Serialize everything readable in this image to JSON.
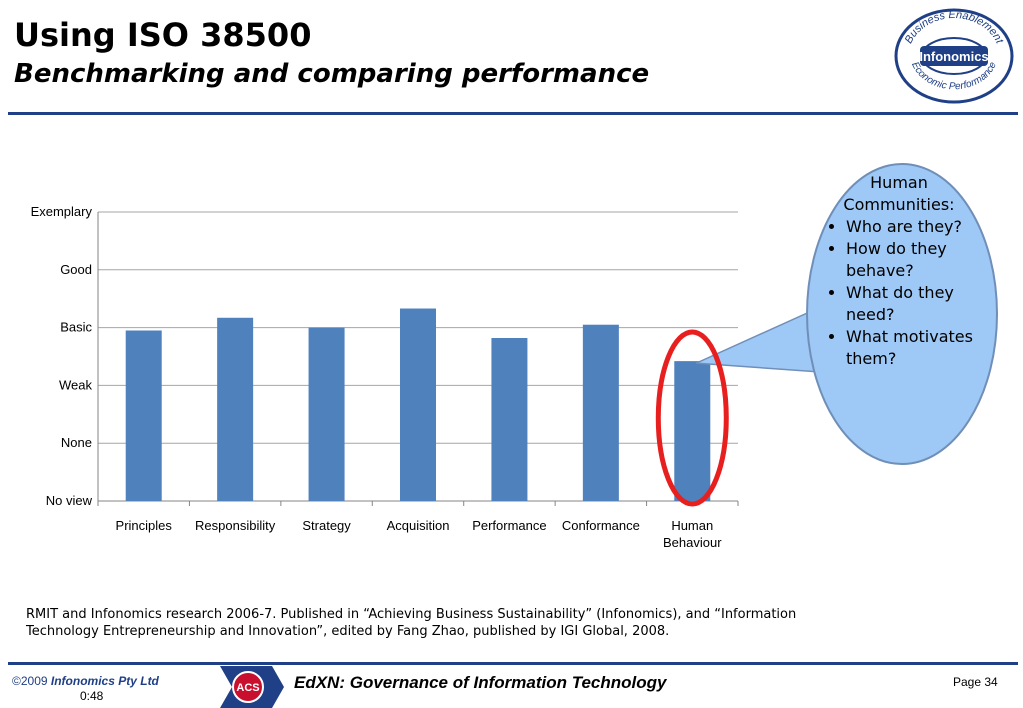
{
  "header": {
    "title": "Using ISO 38500",
    "subtitle": "Benchmarking and comparing performance"
  },
  "logo": {
    "ring_top": "Business Enablement",
    "center": "Infonomics",
    "ring_bottom": "Economic Performance"
  },
  "chart_data": {
    "type": "bar",
    "title": "",
    "xlabel": "",
    "ylabel": "",
    "y_levels": [
      "No view",
      "None",
      "Weak",
      "Basic",
      "Good",
      "Exemplary"
    ],
    "ylim": [
      0,
      5
    ],
    "grid": true,
    "categories": [
      [
        "Principles"
      ],
      [
        "Responsibility"
      ],
      [
        "Strategy"
      ],
      [
        "Acquisition"
      ],
      [
        "Performance"
      ],
      [
        "Conformance"
      ],
      [
        "Human",
        "Behaviour"
      ]
    ],
    "values": [
      2.95,
      3.17,
      3.0,
      3.33,
      2.82,
      3.05,
      2.42
    ],
    "highlighted_index": 6,
    "colors": {
      "bar": "#4f81bd",
      "highlight_ring": "#e81f1f",
      "grid": "#a6a6a6"
    }
  },
  "callout": {
    "heading": [
      "Human",
      "Communities:"
    ],
    "bullets": [
      "Who are they?",
      "How do they behave?",
      "What do they need?",
      "What motivates them?"
    ],
    "fill": "#9ec8f5",
    "stroke": "#6f8fb8"
  },
  "footnote": "RMIT and Infonomics research 2006-7.  Published in “Achieving Business Sustainability” (Infonomics), and “Information Technology Entrepreneurship and Innovation”, edited by Fang Zhao, published by IGI Global, 2008.",
  "footer": {
    "copyright_symbol_year": "©2009",
    "company": "Infonomics Pty Ltd",
    "timer": "0:48",
    "acs_logo_text": "ACS",
    "course": "EdXN: Governance of Information Technology",
    "page": "Page 34"
  }
}
